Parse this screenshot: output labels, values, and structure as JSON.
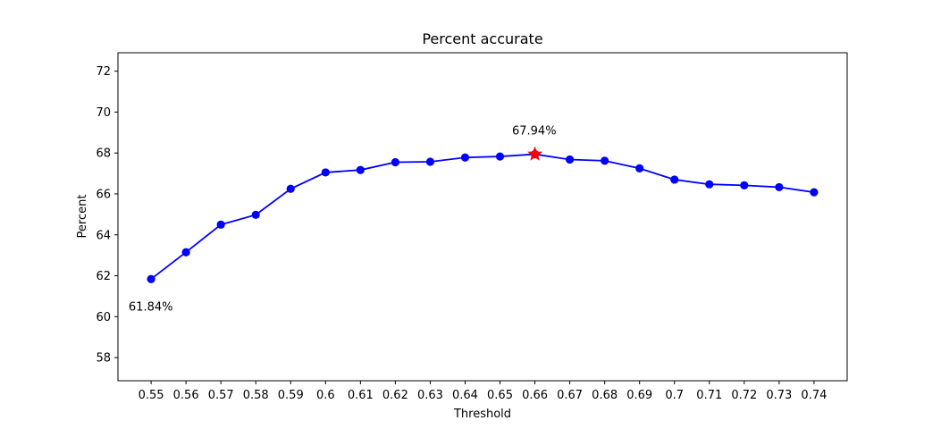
{
  "chart_data": {
    "type": "line",
    "title": "Percent accurate",
    "xlabel": "Threshold",
    "ylabel": "Percent",
    "x": [
      0.55,
      0.56,
      0.57,
      0.58,
      0.59,
      0.6,
      0.61,
      0.62,
      0.63,
      0.64,
      0.65,
      0.66,
      0.67,
      0.68,
      0.69,
      0.7,
      0.71,
      0.72,
      0.73,
      0.74
    ],
    "x_tick_labels": [
      "0.55",
      "0.56",
      "0.57",
      "0.58",
      "0.59",
      "0.6",
      "0.61",
      "0.62",
      "0.63",
      "0.64",
      "0.65",
      "0.66",
      "0.67",
      "0.68",
      "0.69",
      "0.7",
      "0.71",
      "0.72",
      "0.73",
      "0.74"
    ],
    "series": [
      {
        "values": [
          61.84,
          63.15,
          64.5,
          64.98,
          66.25,
          67.05,
          67.17,
          67.55,
          67.57,
          67.78,
          67.83,
          67.94,
          67.68,
          67.62,
          67.25,
          66.7,
          66.47,
          66.42,
          66.33,
          66.08
        ],
        "color": "#0000ff",
        "marker": "circle"
      }
    ],
    "highlight": {
      "x": 0.66,
      "y": 67.94,
      "marker": "star",
      "color": "#ff0000"
    },
    "annotations": [
      {
        "text": "67.94%",
        "x": 0.6598,
        "y": 69.1
      },
      {
        "text": "61.84%",
        "x": 0.5499,
        "y": 60.5
      }
    ],
    "yticks": [
      58,
      60,
      62,
      64,
      66,
      68,
      70,
      72
    ],
    "xlim": [
      0.5405,
      0.7495
    ],
    "ylim": [
      56.87,
      72.9
    ],
    "grid": false,
    "legend": "none"
  }
}
